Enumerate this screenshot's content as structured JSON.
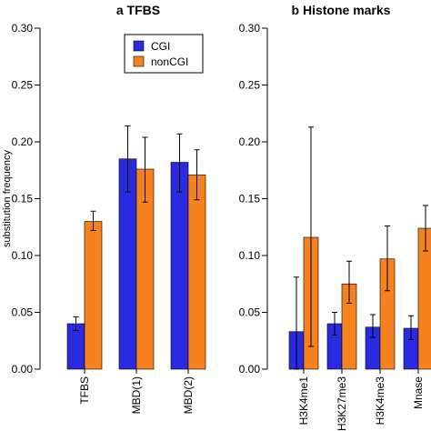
{
  "colors": {
    "CGI": "#2a2ae0",
    "nonCGI": "#f5821f"
  },
  "chart_data": [
    {
      "type": "bar",
      "title": "a TFBS",
      "ylabel": "substitution frequency",
      "ylim": [
        0,
        0.3
      ],
      "yticks": [
        "0.00",
        "0.05",
        "0.10",
        "0.15",
        "0.20",
        "0.25",
        "0.30"
      ],
      "legend": {
        "position": "top-center",
        "entries": [
          "CGI",
          "nonCGI"
        ]
      },
      "categories": [
        "TFBS",
        "MBD(1)",
        "MBD(2)"
      ],
      "series": [
        {
          "name": "CGI",
          "values": [
            0.04,
            0.185,
            0.182
          ],
          "err_low": [
            0.034,
            0.156,
            0.156
          ],
          "err_high": [
            0.046,
            0.214,
            0.207
          ]
        },
        {
          "name": "nonCGI",
          "values": [
            0.13,
            0.176,
            0.171
          ],
          "err_low": [
            0.122,
            0.147,
            0.149
          ],
          "err_high": [
            0.139,
            0.204,
            0.193
          ]
        }
      ]
    },
    {
      "type": "bar",
      "title": "b Histone marks",
      "ylim": [
        0,
        0.3
      ],
      "yticks": [
        "0.00",
        "0.05",
        "0.10",
        "0.15",
        "0.20",
        "0.25",
        "0.30"
      ],
      "categories": [
        "H3K4me1",
        "H3K27me3",
        "H3K4me3",
        "Mnase"
      ],
      "series": [
        {
          "name": "CGI",
          "values": [
            0.033,
            0.04,
            0.037,
            0.036
          ],
          "err_low": [
            0.0,
            0.03,
            0.028,
            0.026
          ],
          "err_high": [
            0.081,
            0.05,
            0.048,
            0.047
          ]
        },
        {
          "name": "nonCGI",
          "values": [
            0.116,
            0.075,
            0.097,
            0.124
          ],
          "err_low": [
            0.02,
            0.058,
            0.069,
            0.104
          ],
          "err_high": [
            0.213,
            0.095,
            0.126,
            0.144
          ]
        }
      ]
    }
  ]
}
